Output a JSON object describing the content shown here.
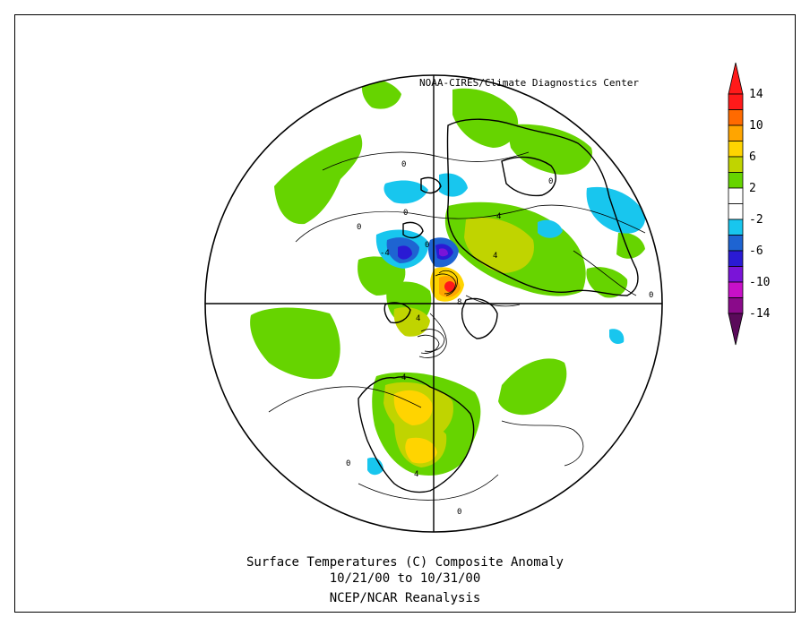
{
  "map": {
    "credit": "NOAA-CIRES/Climate Diagnostics Center",
    "title_line1": "Surface Temperatures (C)   Composite Anomaly",
    "title_line2": "10/21/00  to 10/31/00",
    "title_line3": "NCEP/NCAR Reanalysis",
    "projection": "north polar stereographic"
  },
  "colorbar": {
    "labels": [
      "14",
      "10",
      "6",
      "2",
      "-2",
      "-6",
      "-10",
      "-14"
    ],
    "colors": [
      "#ff1a1a",
      "#ff6a00",
      "#ffa500",
      "#ffd400",
      "#c0d400",
      "#66d400",
      "#ffffff",
      "#ffffff",
      "#18c6ee",
      "#1e64d2",
      "#2a1ad4",
      "#7a14d8",
      "#c810c8",
      "#8a0a8a"
    ],
    "top_cap_color": "#ff1a1a",
    "bottom_cap_color": "#5a0a5a"
  },
  "contour_labels": [
    "0",
    "0",
    "0",
    "0",
    "-4",
    "4",
    "4",
    "4",
    "4",
    "8",
    "4",
    "0",
    "0",
    "0",
    "0"
  ]
}
